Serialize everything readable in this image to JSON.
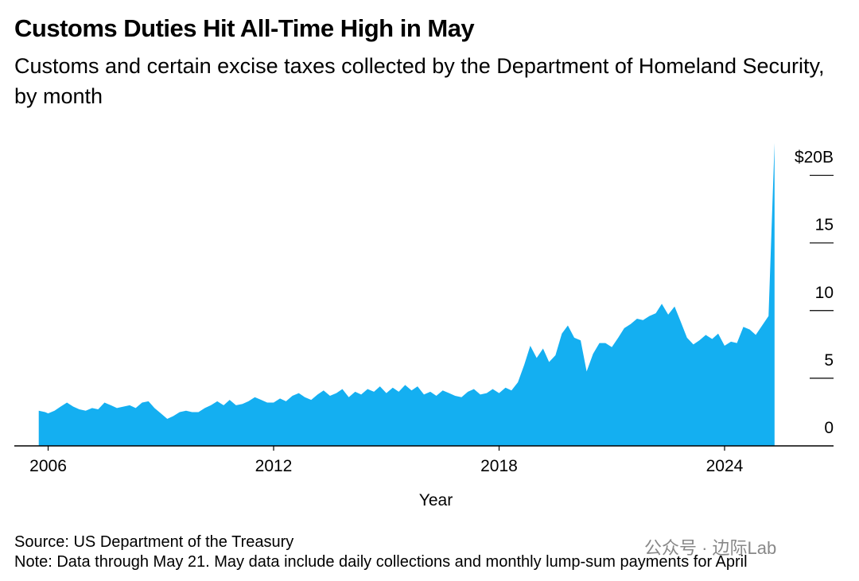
{
  "chart_data": {
    "type": "area",
    "title": "Customs Duties Hit All-Time High in May",
    "subtitle": "Customs and certain excise taxes collected by the Department of Homeland Security, by month",
    "xlabel": "Year",
    "source": "Source: US Department of the Treasury",
    "note": "Note: Data through May 21. May data include daily collections and monthly lump-sum payments for April",
    "watermark": "公众号 · 边际Lab",
    "color": "#14aff1",
    "x": [
      2005.75,
      2005.92,
      2006.0,
      2006.17,
      2006.33,
      2006.5,
      2006.67,
      2006.83,
      2007.0,
      2007.17,
      2007.33,
      2007.5,
      2007.67,
      2007.83,
      2008.0,
      2008.17,
      2008.33,
      2008.5,
      2008.67,
      2008.83,
      2009.0,
      2009.17,
      2009.33,
      2009.5,
      2009.67,
      2009.83,
      2010.0,
      2010.17,
      2010.33,
      2010.5,
      2010.67,
      2010.83,
      2011.0,
      2011.17,
      2011.33,
      2011.5,
      2011.67,
      2011.83,
      2012.0,
      2012.17,
      2012.33,
      2012.5,
      2012.67,
      2012.83,
      2013.0,
      2013.17,
      2013.33,
      2013.5,
      2013.67,
      2013.83,
      2014.0,
      2014.17,
      2014.33,
      2014.5,
      2014.67,
      2014.83,
      2015.0,
      2015.17,
      2015.33,
      2015.5,
      2015.67,
      2015.83,
      2016.0,
      2016.17,
      2016.33,
      2016.5,
      2016.67,
      2016.83,
      2017.0,
      2017.17,
      2017.33,
      2017.5,
      2017.67,
      2017.83,
      2018.0,
      2018.17,
      2018.33,
      2018.5,
      2018.67,
      2018.83,
      2019.0,
      2019.17,
      2019.33,
      2019.5,
      2019.67,
      2019.83,
      2020.0,
      2020.17,
      2020.33,
      2020.5,
      2020.67,
      2020.83,
      2021.0,
      2021.17,
      2021.33,
      2021.5,
      2021.67,
      2021.83,
      2022.0,
      2022.17,
      2022.33,
      2022.5,
      2022.67,
      2022.83,
      2023.0,
      2023.17,
      2023.33,
      2023.5,
      2023.67,
      2023.83,
      2024.0,
      2024.17,
      2024.33,
      2024.5,
      2024.67,
      2024.83,
      2025.0,
      2025.17,
      2025.33
    ],
    "values": [
      2.6,
      2.5,
      2.4,
      2.6,
      2.9,
      3.2,
      2.9,
      2.7,
      2.6,
      2.8,
      2.7,
      3.2,
      3.0,
      2.8,
      2.9,
      3.0,
      2.8,
      3.2,
      3.3,
      2.8,
      2.4,
      2.0,
      2.2,
      2.5,
      2.6,
      2.5,
      2.5,
      2.8,
      3.0,
      3.3,
      3.0,
      3.4,
      3.0,
      3.1,
      3.3,
      3.6,
      3.4,
      3.2,
      3.2,
      3.5,
      3.3,
      3.7,
      3.9,
      3.6,
      3.4,
      3.8,
      4.1,
      3.7,
      3.9,
      4.2,
      3.6,
      4.0,
      3.8,
      4.2,
      4.0,
      4.4,
      3.9,
      4.3,
      4.0,
      4.5,
      4.1,
      4.4,
      3.8,
      4.0,
      3.7,
      4.1,
      3.9,
      3.7,
      3.6,
      4.0,
      4.2,
      3.8,
      3.9,
      4.2,
      3.9,
      4.3,
      4.1,
      4.7,
      6.0,
      7.4,
      6.5,
      7.2,
      6.2,
      6.7,
      8.3,
      8.9,
      8.0,
      7.8,
      5.5,
      6.8,
      7.6,
      7.6,
      7.3,
      8.0,
      8.7,
      9.0,
      9.4,
      9.3,
      9.6,
      9.8,
      10.5,
      9.7,
      10.3,
      9.2,
      8.0,
      7.5,
      7.8,
      8.2,
      7.9,
      8.3,
      7.4,
      7.7,
      7.6,
      8.8,
      8.6,
      8.2,
      8.9,
      9.6,
      22.4
    ],
    "xlim": [
      2005.1,
      2026.9
    ],
    "xticks": [
      2006,
      2012,
      2018,
      2024
    ],
    "ylim": [
      0,
      22.5
    ],
    "yticks": [
      0,
      5,
      10,
      15,
      {
        "value": 20,
        "label": "$20B"
      }
    ],
    "grid": false
  }
}
